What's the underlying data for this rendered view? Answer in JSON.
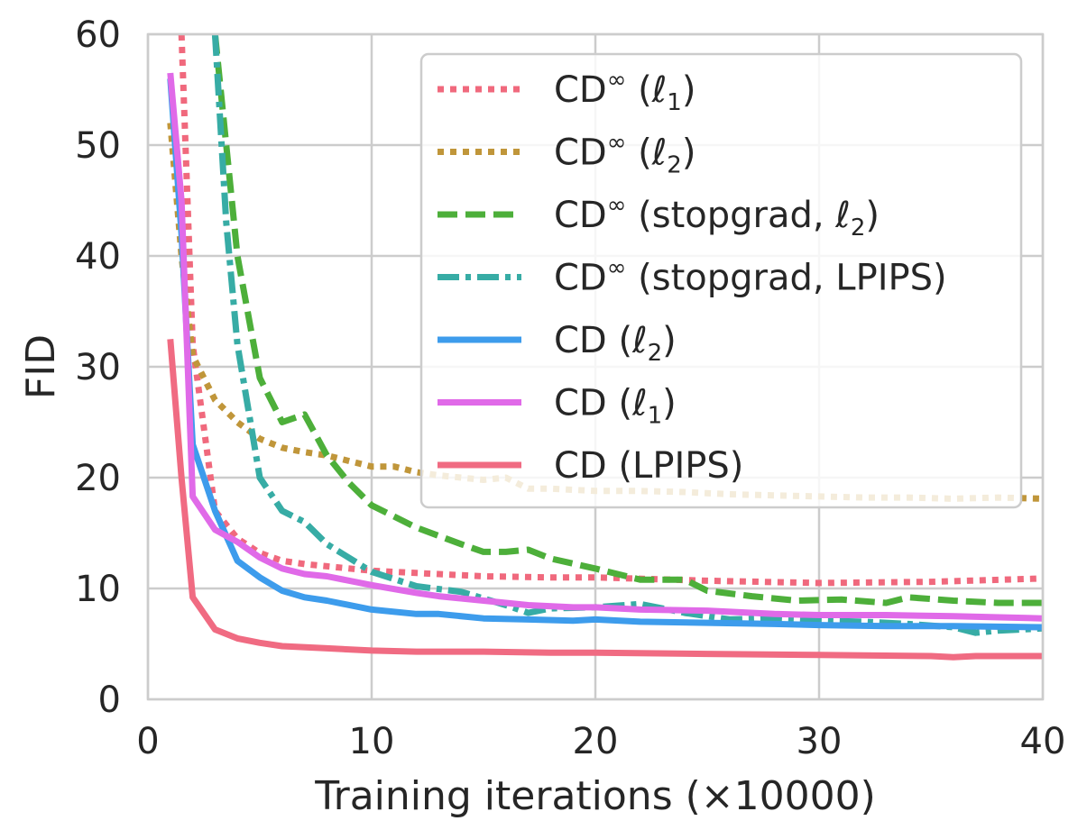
{
  "chart_data": {
    "type": "line",
    "xlabel": "Training iterations (×10000)",
    "ylabel": "FID",
    "xlim": [
      0,
      40
    ],
    "ylim": [
      0,
      60
    ],
    "xticks": [
      0,
      10,
      20,
      30,
      40
    ],
    "yticks": [
      0,
      10,
      20,
      30,
      40,
      50,
      60
    ],
    "grid": true,
    "legend_position": "top-right",
    "series": [
      {
        "name": "CD∞ (ℓ1)",
        "color": "#f0697d",
        "dash": "dotted",
        "x": [
          1.5,
          2,
          3,
          4,
          5,
          6,
          7,
          8,
          10,
          12,
          15,
          18,
          20,
          25,
          30,
          35,
          40
        ],
        "y": [
          60,
          32,
          17,
          14.5,
          13.2,
          12.5,
          12.2,
          12,
          11.6,
          11.4,
          11.1,
          11,
          11,
          10.7,
          10.5,
          10.6,
          10.9
        ]
      },
      {
        "name": "CD∞ (ℓ2)",
        "color": "#c0963a",
        "dash": "dotted",
        "x": [
          1,
          1.5,
          2,
          3,
          4,
          5,
          6,
          7,
          8,
          9,
          10,
          11,
          12,
          13,
          14,
          15,
          16,
          17,
          18,
          19,
          20,
          22,
          24,
          26,
          28,
          30,
          32,
          34,
          36,
          38,
          40
        ],
        "y": [
          52,
          40,
          31,
          27,
          25,
          23.5,
          22.7,
          22.3,
          22,
          21.5,
          21,
          21,
          20.5,
          20.2,
          20,
          19.8,
          20,
          19,
          19,
          18.9,
          18.8,
          18.8,
          18.7,
          18.5,
          18.4,
          18.3,
          18.2,
          18.2,
          18.1,
          18.2,
          18.1
        ]
      },
      {
        "name": "CD∞ (stopgrad, ℓ2)",
        "color": "#4daf3a",
        "dash": "dashed",
        "x": [
          3,
          3.5,
          4,
          5,
          6,
          7,
          8,
          9,
          10,
          12,
          14,
          15,
          16,
          17,
          18,
          20,
          22,
          24,
          25,
          27,
          29,
          31,
          33,
          34,
          36,
          38,
          40
        ],
        "y": [
          60,
          50,
          40,
          29,
          25,
          25.7,
          22,
          19.5,
          17.5,
          15.5,
          14,
          13.3,
          13.3,
          13.5,
          12.7,
          11.8,
          10.8,
          10.8,
          9.8,
          9.3,
          8.9,
          9,
          8.7,
          9.2,
          8.9,
          8.7,
          8.7
        ]
      },
      {
        "name": "CD∞ (stopgrad, LPIPS)",
        "color": "#37aca5",
        "dash": "dashdot",
        "x": [
          3,
          3.5,
          4,
          5,
          6,
          7,
          8,
          10,
          12,
          14,
          16,
          17,
          18,
          20,
          22,
          24,
          26,
          28,
          30,
          32,
          34,
          36,
          37,
          38,
          40
        ],
        "y": [
          60,
          43,
          32,
          20,
          17,
          16,
          14,
          11.5,
          10.2,
          9.7,
          8.5,
          7.8,
          8.2,
          8.3,
          8.6,
          7.8,
          7.2,
          7.3,
          7.1,
          7,
          6.8,
          6.5,
          6,
          6.2,
          6.4
        ]
      },
      {
        "name": "CD (ℓ2)",
        "color": "#3d9cec",
        "dash": "solid",
        "x": [
          1,
          1.5,
          2,
          3,
          4,
          5,
          6,
          7,
          8,
          10,
          12,
          13,
          15,
          17,
          19,
          20,
          22,
          25,
          28,
          30,
          33,
          36,
          40
        ],
        "y": [
          56,
          42,
          23,
          17,
          12.5,
          11,
          9.8,
          9.2,
          8.9,
          8.1,
          7.7,
          7.7,
          7.3,
          7.2,
          7.1,
          7.2,
          7,
          6.9,
          6.8,
          6.7,
          6.6,
          6.6,
          6.5
        ]
      },
      {
        "name": "CD (ℓ1)",
        "color": "#e06ae8",
        "dash": "solid",
        "x": [
          1,
          1.5,
          2,
          3,
          4,
          5,
          6,
          7,
          8,
          10,
          12,
          13,
          15,
          17,
          19,
          20,
          22,
          25,
          28,
          30,
          33,
          36,
          40
        ],
        "y": [
          56.5,
          45,
          18.3,
          15.3,
          14.2,
          12.8,
          11.8,
          11.3,
          11.1,
          10.3,
          9.6,
          9.3,
          8.9,
          8.5,
          8.3,
          8.3,
          8.1,
          8,
          7.7,
          7.6,
          7.6,
          7.5,
          7.3
        ]
      },
      {
        "name": "CD (LPIPS)",
        "color": "#f06b82",
        "dash": "solid",
        "x": [
          1,
          1.5,
          2,
          3,
          4,
          5,
          6,
          8,
          10,
          12,
          15,
          18,
          20,
          25,
          30,
          35,
          36,
          37,
          40
        ],
        "y": [
          32.5,
          20,
          9.2,
          6.3,
          5.5,
          5.1,
          4.8,
          4.6,
          4.4,
          4.3,
          4.3,
          4.2,
          4.2,
          4.1,
          4,
          3.9,
          3.8,
          3.9,
          3.9
        ]
      }
    ],
    "legend_entries": [
      {
        "base": "CD",
        "sup": "∞",
        "open": " (",
        "math": "ℓ",
        "sub": "1",
        "rest": ")"
      },
      {
        "base": "CD",
        "sup": "∞",
        "open": " (",
        "math": "ℓ",
        "sub": "2",
        "rest": ")"
      },
      {
        "base": "CD",
        "sup": "∞",
        "open": " (stopgrad, ",
        "math": "ℓ",
        "sub": "2",
        "rest": ")"
      },
      {
        "base": "CD",
        "sup": "∞",
        "open": " (stopgrad, LPIPS)",
        "math": "",
        "sub": "",
        "rest": ""
      },
      {
        "base": "CD",
        "sup": "",
        "open": " (",
        "math": "ℓ",
        "sub": "2",
        "rest": ")"
      },
      {
        "base": "CD",
        "sup": "",
        "open": " (",
        "math": "ℓ",
        "sub": "1",
        "rest": ")"
      },
      {
        "base": "CD",
        "sup": "",
        "open": " (LPIPS)",
        "math": "",
        "sub": "",
        "rest": ""
      }
    ]
  }
}
